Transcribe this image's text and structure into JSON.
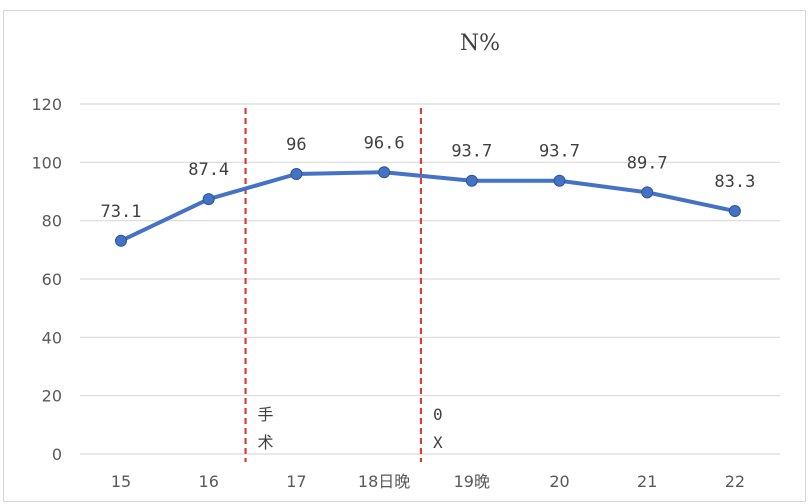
{
  "chart_data": {
    "type": "line",
    "title": "N%",
    "categories": [
      "15",
      "16",
      "17",
      "18日晚",
      "19晚",
      "20",
      "21",
      "22"
    ],
    "series": [
      {
        "values": [
          73.1,
          87.4,
          96,
          96.6,
          93.7,
          93.7,
          89.7,
          83.3
        ]
      }
    ],
    "data_labels": [
      "73.1",
      "87.4",
      "96",
      "96.6",
      "93.7",
      "93.7",
      "89.7",
      "83.3"
    ],
    "ylim": [
      0,
      120
    ],
    "yticks": [
      0,
      20,
      40,
      60,
      80,
      100,
      120
    ],
    "grid": true,
    "legend": "none",
    "annotations": [
      {
        "text_lines": [
          "手",
          "术"
        ],
        "x_between": [
          1,
          2
        ]
      },
      {
        "text_lines": [
          "0",
          "X"
        ],
        "x_between": [
          3,
          4
        ]
      }
    ]
  },
  "colors": {
    "line": "#4472C4",
    "marker": "#4472C4",
    "grid": "#d9d9d9",
    "annotation_line": "#e03a3a"
  }
}
